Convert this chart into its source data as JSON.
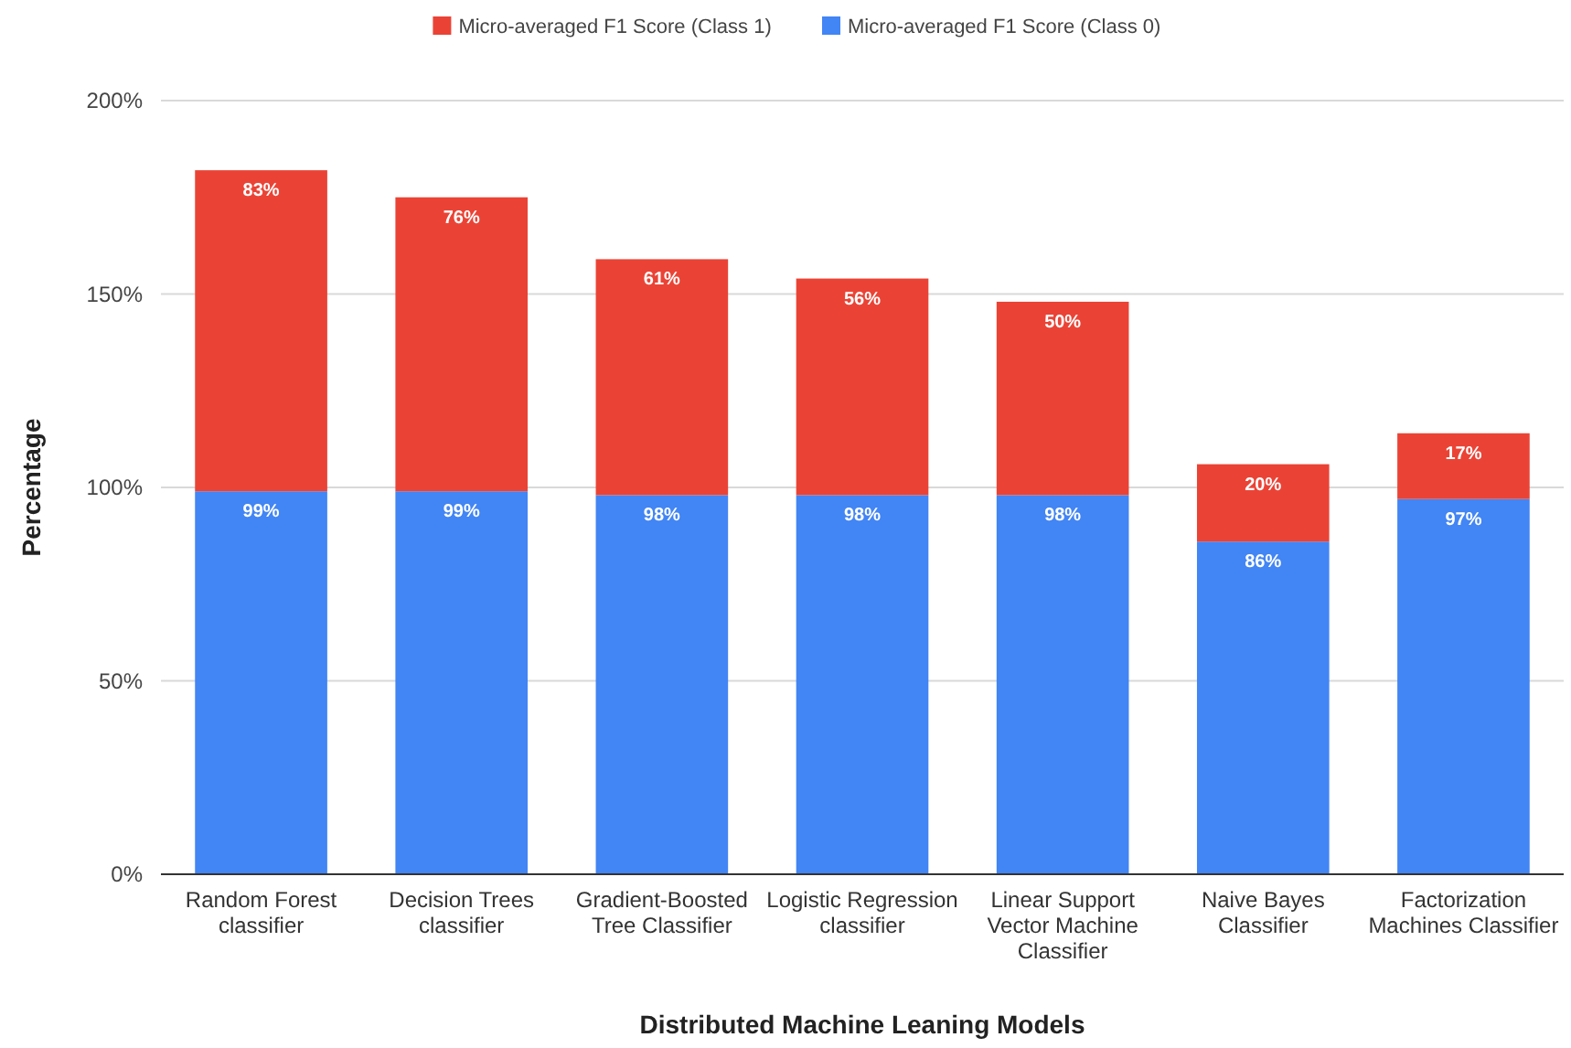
{
  "chart_data": {
    "type": "bar",
    "stacked": true,
    "xlabel": "Distributed Machine Leaning Models",
    "ylabel": "Percentage",
    "categories": [
      "Random Forest classifier",
      "Decision Trees classifier",
      "Gradient-Boosted Tree Classifier",
      "Logistic Regression classifier",
      "Linear Support Vector Machine Classifier",
      "Naive Bayes Classifier",
      "Factorization Machines Classifier"
    ],
    "series": [
      {
        "name": "Micro-averaged F1 Score (Class 0)",
        "color": "#4285f4",
        "values": [
          99,
          99,
          98,
          98,
          98,
          86,
          97
        ],
        "value_labels": [
          "99%",
          "99%",
          "98%",
          "98%",
          "98%",
          "86%",
          "97%"
        ]
      },
      {
        "name": "Micro-averaged F1 Score (Class 1)",
        "color": "#ea4335",
        "values": [
          83,
          76,
          61,
          56,
          50,
          20,
          17
        ],
        "value_labels": [
          "83%",
          "76%",
          "61%",
          "56%",
          "50%",
          "20%",
          "17%"
        ]
      }
    ],
    "ylim": [
      0,
      200
    ],
    "yticks": [
      {
        "value": 0,
        "label": "0%"
      },
      {
        "value": 50,
        "label": "50%"
      },
      {
        "value": 100,
        "label": "100%"
      },
      {
        "value": 150,
        "label": "150%"
      },
      {
        "value": 200,
        "label": "200%"
      }
    ],
    "grid": "y",
    "legend": "top"
  }
}
